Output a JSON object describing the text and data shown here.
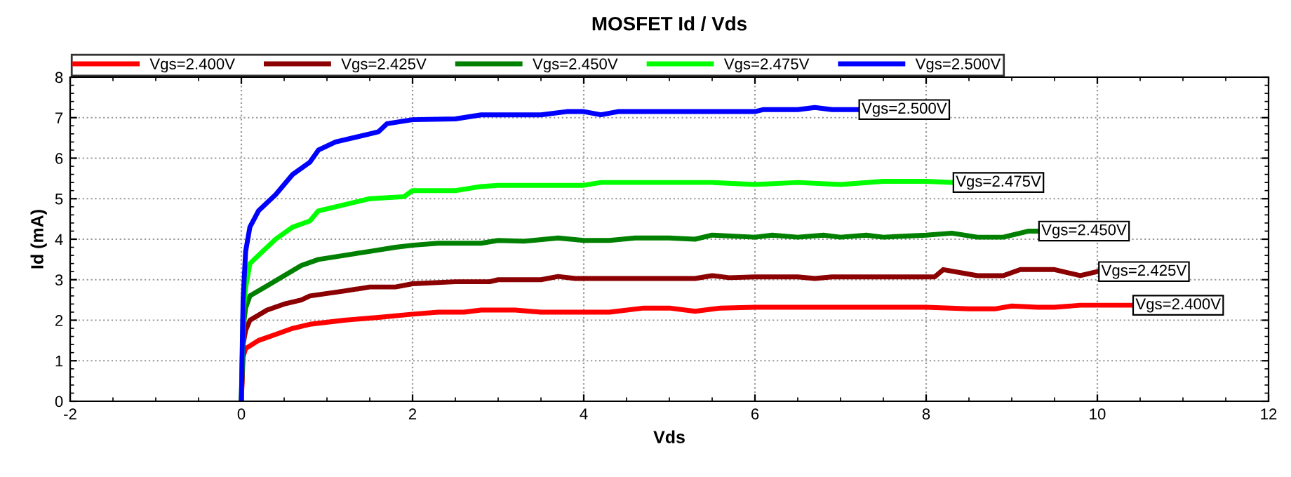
{
  "chart_data": {
    "type": "line",
    "title": "MOSFET Id / Vds",
    "xlabel": "Vds",
    "ylabel": "Id (mA)",
    "xlim": [
      -2,
      12
    ],
    "xticks": [
      -2,
      0,
      2,
      4,
      6,
      8,
      10,
      12
    ],
    "ylim": [
      0,
      8
    ],
    "yticks": [
      0,
      1,
      2,
      3,
      4,
      5,
      6,
      7,
      8
    ],
    "grid": true,
    "legend": "top",
    "marker": "none",
    "line_style": "solid",
    "series": [
      {
        "name": "Vgs=2.400V",
        "color": "#ff0000",
        "x": [
          0,
          0.02,
          0.05,
          0.2,
          0.4,
          0.6,
          0.8,
          1.2,
          1.6,
          2,
          2.3,
          2.6,
          2.8,
          3.2,
          3.5,
          4,
          4.3,
          4.7,
          5,
          5.3,
          5.6,
          6,
          8,
          8.5,
          8.8,
          9,
          9.3,
          9.5,
          9.8,
          10.4
        ],
        "values": [
          0,
          1.1,
          1.3,
          1.5,
          1.65,
          1.8,
          1.9,
          2.0,
          2.07,
          2.15,
          2.2,
          2.2,
          2.25,
          2.25,
          2.2,
          2.2,
          2.2,
          2.3,
          2.3,
          2.22,
          2.3,
          2.32,
          2.32,
          2.28,
          2.28,
          2.35,
          2.32,
          2.32,
          2.37,
          2.37
        ]
      },
      {
        "name": "Vgs=2.425V",
        "color": "#8b0000",
        "x": [
          0,
          0.02,
          0.05,
          0.1,
          0.3,
          0.5,
          0.7,
          0.8,
          1.2,
          1.5,
          1.8,
          2,
          2.5,
          2.9,
          3,
          3.5,
          3.7,
          3.9,
          4.5,
          5.3,
          5.5,
          5.7,
          6,
          6.5,
          6.7,
          6.9,
          8.1,
          8.2,
          8.6,
          8.9,
          9.1,
          9.5,
          9.8,
          10
        ],
        "values": [
          0,
          1.4,
          1.75,
          2.0,
          2.25,
          2.4,
          2.5,
          2.6,
          2.72,
          2.82,
          2.82,
          2.9,
          2.95,
          2.95,
          3.0,
          3.0,
          3.08,
          3.03,
          3.03,
          3.03,
          3.1,
          3.05,
          3.07,
          3.07,
          3.03,
          3.07,
          3.07,
          3.25,
          3.1,
          3.1,
          3.25,
          3.25,
          3.1,
          3.2
        ]
      },
      {
        "name": "Vgs=2.450V",
        "color": "#008000",
        "x": [
          0,
          0.02,
          0.05,
          0.1,
          0.3,
          0.5,
          0.7,
          0.9,
          1.2,
          1.5,
          1.8,
          2,
          2.3,
          2.8,
          3,
          3.3,
          3.7,
          4,
          4.3,
          4.6,
          5,
          5.3,
          5.5,
          6,
          6.2,
          6.5,
          6.8,
          7,
          7.3,
          7.5,
          8,
          8.3,
          8.6,
          8.9,
          9.2,
          9.3
        ],
        "values": [
          0,
          1.8,
          2.3,
          2.6,
          2.85,
          3.1,
          3.35,
          3.5,
          3.6,
          3.7,
          3.8,
          3.85,
          3.9,
          3.9,
          3.97,
          3.95,
          4.03,
          3.97,
          3.97,
          4.03,
          4.03,
          4.0,
          4.1,
          4.05,
          4.1,
          4.05,
          4.1,
          4.05,
          4.1,
          4.05,
          4.1,
          4.15,
          4.05,
          4.05,
          4.2,
          4.2
        ]
      },
      {
        "name": "Vgs=2.475V",
        "color": "#00ff00",
        "x": [
          0,
          0.02,
          0.05,
          0.1,
          0.2,
          0.4,
          0.6,
          0.8,
          0.9,
          1.1,
          1.5,
          1.9,
          2,
          2.5,
          2.8,
          3,
          4,
          4.2,
          5.5,
          6,
          6.5,
          7,
          7.5,
          8.0,
          8.3
        ],
        "values": [
          0,
          2.2,
          2.8,
          3.4,
          3.6,
          4.0,
          4.3,
          4.45,
          4.7,
          4.8,
          5.0,
          5.05,
          5.2,
          5.2,
          5.3,
          5.33,
          5.33,
          5.4,
          5.4,
          5.35,
          5.4,
          5.35,
          5.43,
          5.43,
          5.4
        ]
      },
      {
        "name": "Vgs=2.500V",
        "color": "#0000ff",
        "x": [
          0,
          0.02,
          0.05,
          0.1,
          0.2,
          0.4,
          0.6,
          0.8,
          0.9,
          1.1,
          1.5,
          1.6,
          1.7,
          2,
          2.5,
          2.8,
          3.5,
          3.8,
          4,
          4.2,
          4.4,
          5,
          6,
          6.1,
          6.5,
          6.7,
          6.9,
          7.2
        ],
        "values": [
          0,
          2.5,
          3.7,
          4.3,
          4.7,
          5.1,
          5.6,
          5.9,
          6.2,
          6.4,
          6.6,
          6.65,
          6.85,
          6.95,
          6.97,
          7.07,
          7.07,
          7.15,
          7.15,
          7.07,
          7.15,
          7.15,
          7.15,
          7.2,
          7.2,
          7.25,
          7.2,
          7.2
        ]
      }
    ],
    "annotations": [
      {
        "text": "Vgs=2.400V",
        "x": 10.4,
        "y": 2.37
      },
      {
        "text": "Vgs=2.425V",
        "x": 10,
        "y": 3.2
      },
      {
        "text": "Vgs=2.450V",
        "x": 9.3,
        "y": 4.2
      },
      {
        "text": "Vgs=2.475V",
        "x": 8.3,
        "y": 5.4
      },
      {
        "text": "Vgs=2.500V",
        "x": 7.2,
        "y": 7.2
      }
    ]
  }
}
